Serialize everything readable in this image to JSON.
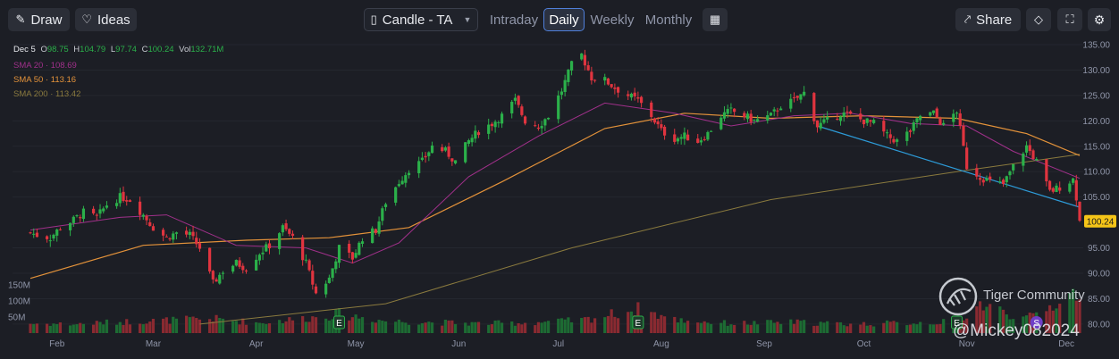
{
  "toolbar": {
    "draw_label": "Draw",
    "ideas_label": "Ideas",
    "chart_type_label": "Candle - TA",
    "periods": [
      "Intraday",
      "Daily",
      "Weekly",
      "Monthly"
    ],
    "active_period": "Daily",
    "share_label": "Share"
  },
  "ohlc": {
    "date": "Dec 5",
    "o_label": "O",
    "o_value": "98.75",
    "h_label": "H",
    "h_value": "104.79",
    "l_label": "L",
    "l_value": "97.74",
    "c_label": "C",
    "c_value": "100.24",
    "vol_label": "Vol",
    "vol_value": "132.71M"
  },
  "legend": {
    "sma20": {
      "label": "SMA 20",
      "value": "108.69",
      "color": "#a0308a"
    },
    "sma50": {
      "label": "SMA 50",
      "value": "113.16",
      "color": "#e3923a"
    },
    "sma200": {
      "label": "SMA 200",
      "value": "113.42",
      "color": "#8a7a3e"
    }
  },
  "colors": {
    "up": "#2bb04a",
    "down": "#e0343f",
    "trendline": "#2d9bd8",
    "price_tag": "#f5c518"
  },
  "watermark": {
    "community": "Tiger Community",
    "user": "@Mickey082024"
  },
  "chart_data": {
    "type": "candlestick",
    "x_range": [
      "2024-01-24",
      "2024-12-05"
    ],
    "xticks": [
      "Feb",
      "Mar",
      "Apr",
      "May",
      "Jun",
      "Jul",
      "Aug",
      "Sep",
      "Oct",
      "Nov",
      "Dec"
    ],
    "xtick_dates": [
      "2024-02-01",
      "2024-03-01",
      "2024-04-01",
      "2024-05-01",
      "2024-06-01",
      "2024-07-01",
      "2024-08-01",
      "2024-09-01",
      "2024-10-01",
      "2024-11-01",
      "2024-12-01"
    ],
    "price_axis": {
      "min": 85,
      "max": 135,
      "ticks": [
        135,
        130,
        125,
        120,
        115,
        110,
        105,
        95,
        90,
        85,
        80
      ]
    },
    "last_price": 100.24,
    "volume_axis": {
      "ticks": [
        "150M",
        "100M",
        "50M"
      ],
      "tick_values": [
        150,
        100,
        50
      ]
    },
    "close": [
      {
        "d": "2024-01-24",
        "c": 98.0
      },
      {
        "d": "2024-01-26",
        "c": 97.5
      },
      {
        "d": "2024-01-30",
        "c": 97.0
      },
      {
        "d": "2024-02-02",
        "c": 99.0
      },
      {
        "d": "2024-02-06",
        "c": 100.5
      },
      {
        "d": "2024-02-09",
        "c": 102.0
      },
      {
        "d": "2024-02-13",
        "c": 101.0
      },
      {
        "d": "2024-02-16",
        "c": 103.5
      },
      {
        "d": "2024-02-20",
        "c": 105.0
      },
      {
        "d": "2024-02-23",
        "c": 104.5
      },
      {
        "d": "2024-02-27",
        "c": 101.5
      },
      {
        "d": "2024-03-01",
        "c": 99.0
      },
      {
        "d": "2024-03-05",
        "c": 97.0
      },
      {
        "d": "2024-03-08",
        "c": 98.0
      },
      {
        "d": "2024-03-12",
        "c": 97.5
      },
      {
        "d": "2024-03-15",
        "c": 95.0
      },
      {
        "d": "2024-03-19",
        "c": 88.0
      },
      {
        "d": "2024-03-22",
        "c": 90.5
      },
      {
        "d": "2024-03-26",
        "c": 92.0
      },
      {
        "d": "2024-03-29",
        "c": 91.0
      },
      {
        "d": "2024-04-02",
        "c": 94.0
      },
      {
        "d": "2024-04-05",
        "c": 95.5
      },
      {
        "d": "2024-04-09",
        "c": 99.0
      },
      {
        "d": "2024-04-12",
        "c": 97.0
      },
      {
        "d": "2024-04-16",
        "c": 92.0
      },
      {
        "d": "2024-04-19",
        "c": 86.0
      },
      {
        "d": "2024-04-23",
        "c": 89.0
      },
      {
        "d": "2024-04-26",
        "c": 95.0
      },
      {
        "d": "2024-04-30",
        "c": 93.0
      },
      {
        "d": "2024-05-03",
        "c": 97.0
      },
      {
        "d": "2024-05-07",
        "c": 98.5
      },
      {
        "d": "2024-05-10",
        "c": 104.0
      },
      {
        "d": "2024-05-14",
        "c": 108.0
      },
      {
        "d": "2024-05-17",
        "c": 110.5
      },
      {
        "d": "2024-05-21",
        "c": 112.0
      },
      {
        "d": "2024-05-24",
        "c": 115.0
      },
      {
        "d": "2024-05-28",
        "c": 114.0
      },
      {
        "d": "2024-05-31",
        "c": 112.0
      },
      {
        "d": "2024-06-04",
        "c": 116.0
      },
      {
        "d": "2024-06-07",
        "c": 118.0
      },
      {
        "d": "2024-06-11",
        "c": 119.5
      },
      {
        "d": "2024-06-14",
        "c": 121.0
      },
      {
        "d": "2024-06-18",
        "c": 124.0
      },
      {
        "d": "2024-06-21",
        "c": 120.0
      },
      {
        "d": "2024-06-25",
        "c": 119.0
      },
      {
        "d": "2024-06-28",
        "c": 121.0
      },
      {
        "d": "2024-07-02",
        "c": 126.0
      },
      {
        "d": "2024-07-05",
        "c": 131.0
      },
      {
        "d": "2024-07-08",
        "c": 133.0
      },
      {
        "d": "2024-07-11",
        "c": 128.5
      },
      {
        "d": "2024-07-15",
        "c": 128.0
      },
      {
        "d": "2024-07-18",
        "c": 126.5
      },
      {
        "d": "2024-07-22",
        "c": 125.0
      },
      {
        "d": "2024-07-25",
        "c": 124.0
      },
      {
        "d": "2024-07-29",
        "c": 121.0
      },
      {
        "d": "2024-08-01",
        "c": 118.0
      },
      {
        "d": "2024-08-05",
        "c": 116.5
      },
      {
        "d": "2024-08-08",
        "c": 117.0
      },
      {
        "d": "2024-08-12",
        "c": 116.0
      },
      {
        "d": "2024-08-15",
        "c": 117.5
      },
      {
        "d": "2024-08-19",
        "c": 121.0
      },
      {
        "d": "2024-08-22",
        "c": 122.0
      },
      {
        "d": "2024-08-26",
        "c": 121.0
      },
      {
        "d": "2024-08-29",
        "c": 120.0
      },
      {
        "d": "2024-09-03",
        "c": 121.0
      },
      {
        "d": "2024-09-06",
        "c": 123.0
      },
      {
        "d": "2024-09-10",
        "c": 124.0
      },
      {
        "d": "2024-09-13",
        "c": 125.5
      },
      {
        "d": "2024-09-17",
        "c": 119.0
      },
      {
        "d": "2024-09-20",
        "c": 120.0
      },
      {
        "d": "2024-09-24",
        "c": 121.5
      },
      {
        "d": "2024-09-27",
        "c": 121.0
      },
      {
        "d": "2024-10-01",
        "c": 120.0
      },
      {
        "d": "2024-10-04",
        "c": 119.5
      },
      {
        "d": "2024-10-08",
        "c": 117.0
      },
      {
        "d": "2024-10-11",
        "c": 116.0
      },
      {
        "d": "2024-10-15",
        "c": 118.0
      },
      {
        "d": "2024-10-18",
        "c": 121.0
      },
      {
        "d": "2024-10-22",
        "c": 121.5
      },
      {
        "d": "2024-10-25",
        "c": 119.0
      },
      {
        "d": "2024-10-29",
        "c": 122.0
      },
      {
        "d": "2024-11-01",
        "c": 111.0
      },
      {
        "d": "2024-11-05",
        "c": 109.0
      },
      {
        "d": "2024-11-08",
        "c": 108.0
      },
      {
        "d": "2024-11-12",
        "c": 107.5
      },
      {
        "d": "2024-11-15",
        "c": 111.0
      },
      {
        "d": "2024-11-19",
        "c": 115.0
      },
      {
        "d": "2024-11-22",
        "c": 112.0
      },
      {
        "d": "2024-11-26",
        "c": 106.0
      },
      {
        "d": "2024-11-29",
        "c": 107.0
      },
      {
        "d": "2024-12-03",
        "c": 108.5
      },
      {
        "d": "2024-12-04",
        "c": 105.0
      },
      {
        "d": "2024-12-05",
        "c": 100.24
      }
    ],
    "sma20": [
      {
        "d": "2024-01-24",
        "v": 98.5
      },
      {
        "d": "2024-02-20",
        "v": 101.0
      },
      {
        "d": "2024-03-05",
        "v": 101.5
      },
      {
        "d": "2024-03-26",
        "v": 95.5
      },
      {
        "d": "2024-04-16",
        "v": 95.0
      },
      {
        "d": "2024-04-30",
        "v": 92.0
      },
      {
        "d": "2024-05-14",
        "v": 96.0
      },
      {
        "d": "2024-06-04",
        "v": 109.0
      },
      {
        "d": "2024-06-25",
        "v": 117.0
      },
      {
        "d": "2024-07-15",
        "v": 123.5
      },
      {
        "d": "2024-08-05",
        "v": 121.5
      },
      {
        "d": "2024-08-22",
        "v": 119.0
      },
      {
        "d": "2024-09-10",
        "v": 121.0
      },
      {
        "d": "2024-09-27",
        "v": 121.5
      },
      {
        "d": "2024-10-15",
        "v": 119.5
      },
      {
        "d": "2024-11-01",
        "v": 119.0
      },
      {
        "d": "2024-11-15",
        "v": 114.0
      },
      {
        "d": "2024-12-05",
        "v": 108.69
      }
    ],
    "sma50": [
      {
        "d": "2024-01-24",
        "v": 89.0
      },
      {
        "d": "2024-02-27",
        "v": 95.5
      },
      {
        "d": "2024-03-29",
        "v": 96.5
      },
      {
        "d": "2024-04-23",
        "v": 97.0
      },
      {
        "d": "2024-05-17",
        "v": 99.0
      },
      {
        "d": "2024-06-14",
        "v": 108.0
      },
      {
        "d": "2024-07-15",
        "v": 118.5
      },
      {
        "d": "2024-08-08",
        "v": 121.5
      },
      {
        "d": "2024-09-03",
        "v": 120.5
      },
      {
        "d": "2024-10-01",
        "v": 121.0
      },
      {
        "d": "2024-10-29",
        "v": 120.5
      },
      {
        "d": "2024-11-19",
        "v": 117.5
      },
      {
        "d": "2024-12-05",
        "v": 113.16
      }
    ],
    "sma200": [
      {
        "d": "2024-03-15",
        "v": 80.0
      },
      {
        "d": "2024-05-10",
        "v": 84.0
      },
      {
        "d": "2024-07-05",
        "v": 95.0
      },
      {
        "d": "2024-09-03",
        "v": 104.5
      },
      {
        "d": "2024-10-29",
        "v": 110.0
      },
      {
        "d": "2024-12-05",
        "v": 113.42
      }
    ],
    "trendline": [
      {
        "d": "2024-09-17",
        "v": 119.0
      },
      {
        "d": "2024-12-05",
        "v": 103.0
      }
    ],
    "earnings_markers": [
      {
        "d": "2024-04-26",
        "label": "E"
      },
      {
        "d": "2024-07-25",
        "label": "E"
      },
      {
        "d": "2024-10-29",
        "label": "E"
      }
    ],
    "split_markers": [
      {
        "d": "2024-11-22",
        "label": "S"
      }
    ],
    "volume": [
      {
        "d": "2024-01-24",
        "v": 30
      },
      {
        "d": "2024-02-06",
        "v": 28
      },
      {
        "d": "2024-02-20",
        "v": 35
      },
      {
        "d": "2024-03-05",
        "v": 40
      },
      {
        "d": "2024-03-19",
        "v": 45
      },
      {
        "d": "2024-04-02",
        "v": 32
      },
      {
        "d": "2024-04-19",
        "v": 50
      },
      {
        "d": "2024-04-26",
        "v": 60
      },
      {
        "d": "2024-05-10",
        "v": 38
      },
      {
        "d": "2024-05-24",
        "v": 34
      },
      {
        "d": "2024-06-07",
        "v": 30
      },
      {
        "d": "2024-06-21",
        "v": 32
      },
      {
        "d": "2024-07-08",
        "v": 40
      },
      {
        "d": "2024-07-25",
        "v": 75
      },
      {
        "d": "2024-08-05",
        "v": 42
      },
      {
        "d": "2024-08-22",
        "v": 30
      },
      {
        "d": "2024-09-10",
        "v": 34
      },
      {
        "d": "2024-09-27",
        "v": 28
      },
      {
        "d": "2024-10-15",
        "v": 32
      },
      {
        "d": "2024-10-29",
        "v": 36
      },
      {
        "d": "2024-11-05",
        "v": 90
      },
      {
        "d": "2024-11-19",
        "v": 44
      },
      {
        "d": "2024-12-05",
        "v": 132.71
      }
    ]
  }
}
